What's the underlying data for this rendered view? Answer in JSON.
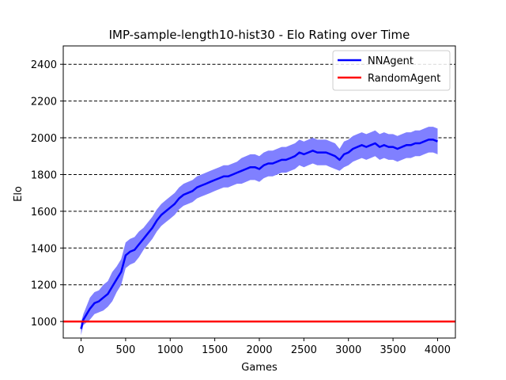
{
  "chart_data": {
    "type": "line",
    "title": "IMP-sample-length10-hist30 - Elo Rating over Time",
    "xlabel": "Games",
    "ylabel": "Elo",
    "xlim": [
      -200,
      4200
    ],
    "ylim": [
      910,
      2500
    ],
    "xticks": [
      0,
      500,
      1000,
      1500,
      2000,
      2500,
      3000,
      3500,
      4000
    ],
    "yticks": [
      1000,
      1200,
      1400,
      1600,
      1800,
      2000,
      2200,
      2400
    ],
    "xtick_labels": [
      "0",
      "500",
      "1000",
      "1500",
      "2000",
      "2500",
      "3000",
      "3500",
      "4000"
    ],
    "ytick_labels": [
      "1000",
      "1200",
      "1400",
      "1600",
      "1800",
      "2000",
      "2200",
      "2400"
    ],
    "grid": "horizontal dashed",
    "legend_position": "top-right",
    "series": [
      {
        "name": "NNAgent",
        "color": "#0000ff",
        "band_color": "#8080ff",
        "x": [
          0,
          25,
          50,
          100,
          150,
          200,
          250,
          300,
          350,
          400,
          450,
          500,
          550,
          600,
          650,
          700,
          750,
          800,
          850,
          900,
          950,
          1000,
          1050,
          1100,
          1150,
          1200,
          1250,
          1300,
          1350,
          1400,
          1450,
          1500,
          1550,
          1600,
          1650,
          1700,
          1750,
          1800,
          1850,
          1900,
          1950,
          2000,
          2050,
          2100,
          2150,
          2200,
          2250,
          2300,
          2350,
          2400,
          2450,
          2500,
          2550,
          2600,
          2650,
          2700,
          2750,
          2800,
          2850,
          2900,
          2950,
          3000,
          3050,
          3100,
          3150,
          3200,
          3250,
          3300,
          3350,
          3400,
          3450,
          3500,
          3550,
          3600,
          3650,
          3700,
          3750,
          3800,
          3850,
          3900,
          3950,
          4000
        ],
        "y": [
          960,
          1010,
          1030,
          1070,
          1100,
          1110,
          1130,
          1150,
          1190,
          1230,
          1270,
          1360,
          1380,
          1390,
          1420,
          1450,
          1480,
          1510,
          1550,
          1580,
          1600,
          1620,
          1640,
          1670,
          1690,
          1700,
          1710,
          1730,
          1740,
          1750,
          1760,
          1770,
          1780,
          1790,
          1790,
          1800,
          1810,
          1820,
          1830,
          1840,
          1840,
          1830,
          1850,
          1860,
          1860,
          1870,
          1880,
          1880,
          1890,
          1900,
          1920,
          1910,
          1920,
          1930,
          1920,
          1920,
          1920,
          1910,
          1900,
          1880,
          1910,
          1920,
          1940,
          1950,
          1960,
          1950,
          1960,
          1970,
          1950,
          1960,
          1950,
          1950,
          1940,
          1950,
          1960,
          1960,
          1970,
          1970,
          1980,
          1990,
          1990,
          1980
        ],
        "lower": [
          925,
          980,
          990,
          1010,
          1040,
          1050,
          1060,
          1080,
          1110,
          1160,
          1200,
          1290,
          1310,
          1320,
          1350,
          1390,
          1420,
          1450,
          1490,
          1520,
          1540,
          1560,
          1580,
          1610,
          1630,
          1640,
          1650,
          1670,
          1680,
          1690,
          1700,
          1710,
          1720,
          1730,
          1730,
          1740,
          1750,
          1750,
          1760,
          1770,
          1770,
          1760,
          1780,
          1790,
          1790,
          1800,
          1810,
          1810,
          1820,
          1830,
          1850,
          1840,
          1850,
          1860,
          1850,
          1850,
          1850,
          1840,
          1830,
          1820,
          1840,
          1850,
          1870,
          1880,
          1890,
          1880,
          1890,
          1900,
          1880,
          1890,
          1880,
          1880,
          1870,
          1880,
          1890,
          1890,
          1900,
          1900,
          1910,
          1920,
          1920,
          1910
        ],
        "upper": [
          995,
          1040,
          1070,
          1130,
          1160,
          1170,
          1200,
          1220,
          1270,
          1300,
          1340,
          1430,
          1450,
          1460,
          1490,
          1510,
          1540,
          1570,
          1610,
          1640,
          1660,
          1680,
          1700,
          1730,
          1750,
          1760,
          1770,
          1790,
          1800,
          1810,
          1820,
          1830,
          1840,
          1850,
          1850,
          1860,
          1870,
          1890,
          1900,
          1910,
          1910,
          1900,
          1920,
          1930,
          1930,
          1940,
          1950,
          1950,
          1960,
          1970,
          1990,
          1980,
          1990,
          2000,
          1990,
          1990,
          1990,
          1980,
          1970,
          1940,
          1980,
          1990,
          2010,
          2020,
          2030,
          2020,
          2030,
          2040,
          2020,
          2030,
          2020,
          2020,
          2010,
          2020,
          2030,
          2030,
          2040,
          2040,
          2050,
          2060,
          2060,
          2050
        ]
      },
      {
        "name": "RandomAgent",
        "color": "#ff0000",
        "x": [
          -200,
          4200
        ],
        "y": [
          1000,
          1000
        ]
      }
    ]
  }
}
